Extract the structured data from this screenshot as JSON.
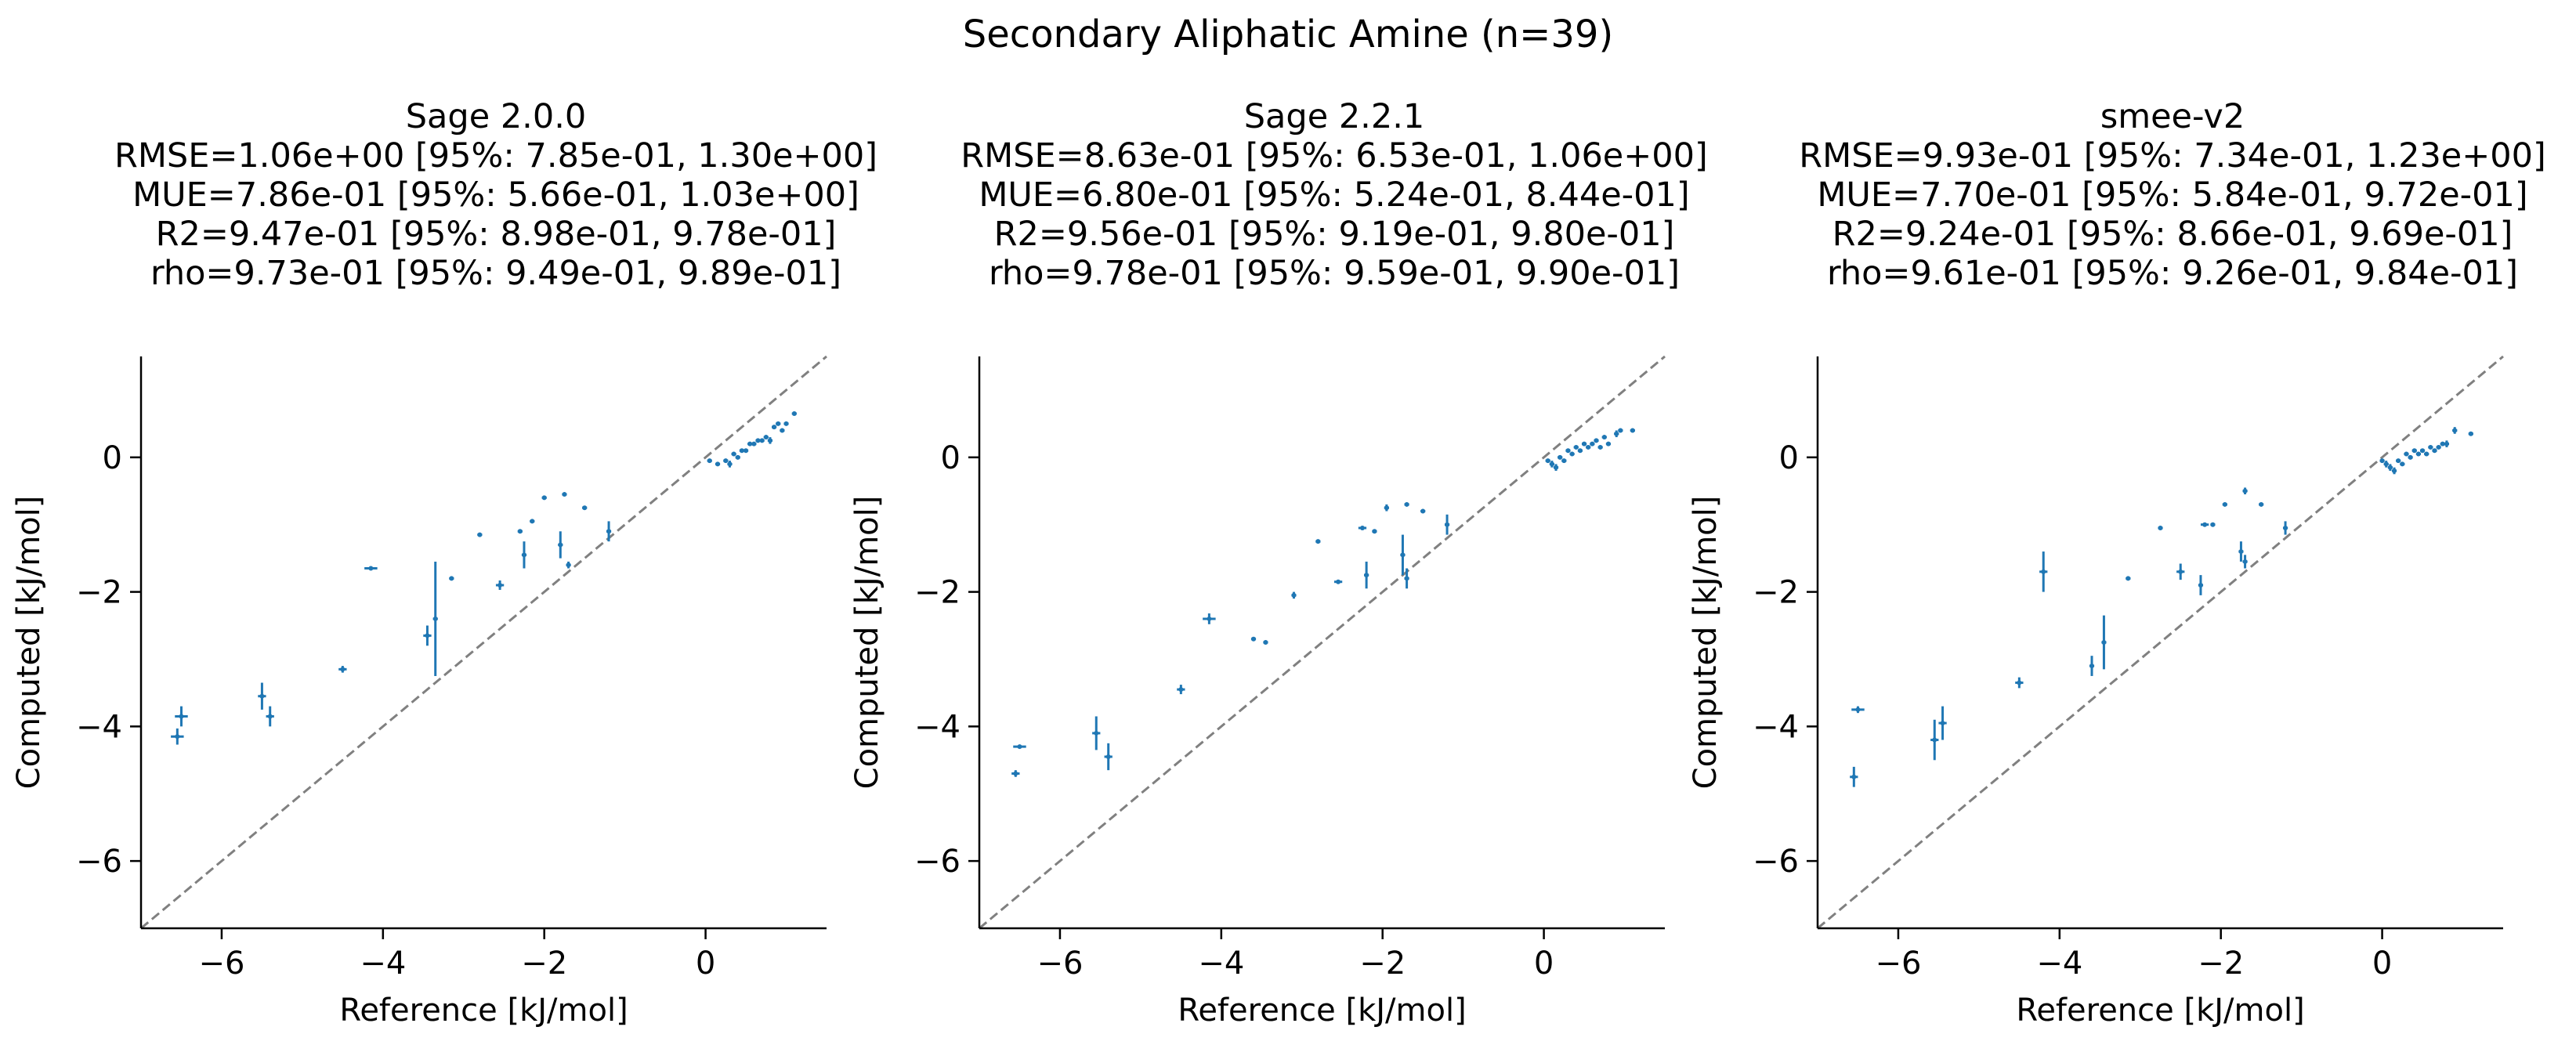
{
  "suptitle": "Secondary Aliphatic Amine (n=39)",
  "colors": {
    "points": "#1f77b4",
    "diagonal": "#808080",
    "axes": "#000000"
  },
  "chart_data": [
    {
      "type": "scatter",
      "title": "Sage 2.0.0",
      "stats": [
        "RMSE=1.06e+00 [95%: 7.85e-01, 1.30e+00]",
        "MUE=7.86e-01 [95%: 5.66e-01, 1.03e+00]",
        "R2=9.47e-01 [95%: 8.98e-01, 9.78e-01]",
        "rho=9.73e-01 [95%: 9.49e-01, 9.89e-01]"
      ],
      "xlabel": "Reference [kJ/mol]",
      "ylabel": "Computed [kJ/mol]",
      "xlim": [
        -7.0,
        1.5
      ],
      "ylim": [
        -7.0,
        1.5
      ],
      "xticks": [
        "−6",
        "−4",
        "−2",
        "0"
      ],
      "yticks": [
        "−6",
        "−4",
        "−2",
        "0"
      ],
      "xtick_values": [
        -6,
        -4,
        -2,
        0
      ],
      "ytick_values": [
        -6,
        -4,
        -2,
        0
      ],
      "diagonal": true,
      "points": [
        {
          "x": -6.55,
          "y": -4.15,
          "yerr": 0.12,
          "xerr": 0.08
        },
        {
          "x": -6.5,
          "y": -3.85,
          "yerr": 0.15,
          "xerr": 0.08
        },
        {
          "x": -5.5,
          "y": -3.55,
          "yerr": 0.2,
          "xerr": 0.05
        },
        {
          "x": -5.4,
          "y": -3.85,
          "yerr": 0.15,
          "xerr": 0.05
        },
        {
          "x": -4.5,
          "y": -3.15,
          "yerr": 0.05,
          "xerr": 0.05
        },
        {
          "x": -4.15,
          "y": -1.65,
          "yerr": 0.02,
          "xerr": 0.08
        },
        {
          "x": -3.45,
          "y": -2.65,
          "yerr": 0.15,
          "xerr": 0.05
        },
        {
          "x": -3.35,
          "y": -2.4,
          "yerr": 0.85,
          "xerr": 0.03
        },
        {
          "x": -3.15,
          "y": -1.8,
          "yerr": 0.03,
          "xerr": 0.03
        },
        {
          "x": -2.8,
          "y": -1.15,
          "yerr": 0.03,
          "xerr": 0.03
        },
        {
          "x": -2.55,
          "y": -1.9,
          "yerr": 0.07,
          "xerr": 0.05
        },
        {
          "x": -2.3,
          "y": -1.1,
          "yerr": 0.03,
          "xerr": 0.03
        },
        {
          "x": -2.25,
          "y": -1.45,
          "yerr": 0.2,
          "xerr": 0.03
        },
        {
          "x": -2.15,
          "y": -0.95,
          "yerr": 0.03,
          "xerr": 0.03
        },
        {
          "x": -2.0,
          "y": -0.6,
          "yerr": 0.03,
          "xerr": 0.03
        },
        {
          "x": -1.8,
          "y": -1.3,
          "yerr": 0.2,
          "xerr": 0.03
        },
        {
          "x": -1.75,
          "y": -0.55,
          "yerr": 0.03,
          "xerr": 0.03
        },
        {
          "x": -1.7,
          "y": -1.6,
          "yerr": 0.05,
          "xerr": 0.03
        },
        {
          "x": -1.5,
          "y": -0.75,
          "yerr": 0.03,
          "xerr": 0.03
        },
        {
          "x": -1.2,
          "y": -1.1,
          "yerr": 0.15,
          "xerr": 0.03
        },
        {
          "x": 0.05,
          "y": -0.05,
          "yerr": 0.03,
          "xerr": 0.03
        },
        {
          "x": 0.15,
          "y": -0.1,
          "yerr": 0.03,
          "xerr": 0.03
        },
        {
          "x": 0.25,
          "y": -0.05,
          "yerr": 0.03,
          "xerr": 0.03
        },
        {
          "x": 0.3,
          "y": -0.1,
          "yerr": 0.05,
          "xerr": 0.03
        },
        {
          "x": 0.35,
          "y": 0.05,
          "yerr": 0.03,
          "xerr": 0.03
        },
        {
          "x": 0.4,
          "y": 0.0,
          "yerr": 0.03,
          "xerr": 0.03
        },
        {
          "x": 0.45,
          "y": 0.1,
          "yerr": 0.03,
          "xerr": 0.03
        },
        {
          "x": 0.5,
          "y": 0.1,
          "yerr": 0.03,
          "xerr": 0.03
        },
        {
          "x": 0.55,
          "y": 0.2,
          "yerr": 0.03,
          "xerr": 0.03
        },
        {
          "x": 0.6,
          "y": 0.2,
          "yerr": 0.03,
          "xerr": 0.03
        },
        {
          "x": 0.65,
          "y": 0.25,
          "yerr": 0.03,
          "xerr": 0.03
        },
        {
          "x": 0.7,
          "y": 0.25,
          "yerr": 0.03,
          "xerr": 0.03
        },
        {
          "x": 0.75,
          "y": 0.3,
          "yerr": 0.03,
          "xerr": 0.03
        },
        {
          "x": 0.8,
          "y": 0.25,
          "yerr": 0.05,
          "xerr": 0.03
        },
        {
          "x": 0.85,
          "y": 0.45,
          "yerr": 0.03,
          "xerr": 0.03
        },
        {
          "x": 0.9,
          "y": 0.5,
          "yerr": 0.03,
          "xerr": 0.03
        },
        {
          "x": 0.95,
          "y": 0.4,
          "yerr": 0.03,
          "xerr": 0.03
        },
        {
          "x": 1.0,
          "y": 0.5,
          "yerr": 0.03,
          "xerr": 0.03
        },
        {
          "x": 1.1,
          "y": 0.65,
          "yerr": 0.03,
          "xerr": 0.03
        }
      ]
    },
    {
      "type": "scatter",
      "title": "Sage 2.2.1",
      "stats": [
        "RMSE=8.63e-01 [95%: 6.53e-01, 1.06e+00]",
        "MUE=6.80e-01 [95%: 5.24e-01, 8.44e-01]",
        "R2=9.56e-01 [95%: 9.19e-01, 9.80e-01]",
        "rho=9.78e-01 [95%: 9.59e-01, 9.90e-01]"
      ],
      "xlabel": "Reference [kJ/mol]",
      "ylabel": "Computed [kJ/mol]",
      "xlim": [
        -7.0,
        1.5
      ],
      "ylim": [
        -7.0,
        1.5
      ],
      "xticks": [
        "−6",
        "−4",
        "−2",
        "0"
      ],
      "yticks": [
        "−6",
        "−4",
        "−2",
        "0"
      ],
      "xtick_values": [
        -6,
        -4,
        -2,
        0
      ],
      "ytick_values": [
        -6,
        -4,
        -2,
        0
      ],
      "diagonal": true,
      "points": [
        {
          "x": -6.55,
          "y": -4.7,
          "yerr": 0.05,
          "xerr": 0.05
        },
        {
          "x": -6.5,
          "y": -4.3,
          "yerr": 0.02,
          "xerr": 0.08
        },
        {
          "x": -5.55,
          "y": -4.1,
          "yerr": 0.25,
          "xerr": 0.05
        },
        {
          "x": -5.4,
          "y": -4.45,
          "yerr": 0.2,
          "xerr": 0.05
        },
        {
          "x": -4.5,
          "y": -3.45,
          "yerr": 0.07,
          "xerr": 0.05
        },
        {
          "x": -4.15,
          "y": -2.4,
          "yerr": 0.08,
          "xerr": 0.08
        },
        {
          "x": -3.6,
          "y": -2.7,
          "yerr": 0.03,
          "xerr": 0.03
        },
        {
          "x": -3.45,
          "y": -2.75,
          "yerr": 0.03,
          "xerr": 0.03
        },
        {
          "x": -3.1,
          "y": -2.05,
          "yerr": 0.05,
          "xerr": 0.03
        },
        {
          "x": -2.8,
          "y": -1.25,
          "yerr": 0.03,
          "xerr": 0.03
        },
        {
          "x": -2.55,
          "y": -1.85,
          "yerr": 0.03,
          "xerr": 0.05
        },
        {
          "x": -2.25,
          "y": -1.05,
          "yerr": 0.03,
          "xerr": 0.05
        },
        {
          "x": -2.2,
          "y": -1.75,
          "yerr": 0.2,
          "xerr": 0.03
        },
        {
          "x": -2.1,
          "y": -1.1,
          "yerr": 0.03,
          "xerr": 0.03
        },
        {
          "x": -1.95,
          "y": -0.75,
          "yerr": 0.05,
          "xerr": 0.03
        },
        {
          "x": -1.75,
          "y": -1.45,
          "yerr": 0.3,
          "xerr": 0.03
        },
        {
          "x": -1.7,
          "y": -0.7,
          "yerr": 0.03,
          "xerr": 0.03
        },
        {
          "x": -1.7,
          "y": -1.8,
          "yerr": 0.15,
          "xerr": 0.03
        },
        {
          "x": -1.5,
          "y": -0.8,
          "yerr": 0.03,
          "xerr": 0.03
        },
        {
          "x": -1.2,
          "y": -1.0,
          "yerr": 0.15,
          "xerr": 0.03
        },
        {
          "x": 0.05,
          "y": -0.05,
          "yerr": 0.03,
          "xerr": 0.03
        },
        {
          "x": 0.1,
          "y": -0.1,
          "yerr": 0.05,
          "xerr": 0.03
        },
        {
          "x": 0.15,
          "y": -0.15,
          "yerr": 0.05,
          "xerr": 0.03
        },
        {
          "x": 0.2,
          "y": 0.0,
          "yerr": 0.03,
          "xerr": 0.03
        },
        {
          "x": 0.25,
          "y": -0.05,
          "yerr": 0.03,
          "xerr": 0.03
        },
        {
          "x": 0.3,
          "y": 0.1,
          "yerr": 0.03,
          "xerr": 0.03
        },
        {
          "x": 0.35,
          "y": 0.05,
          "yerr": 0.03,
          "xerr": 0.03
        },
        {
          "x": 0.4,
          "y": 0.15,
          "yerr": 0.03,
          "xerr": 0.03
        },
        {
          "x": 0.45,
          "y": 0.1,
          "yerr": 0.03,
          "xerr": 0.03
        },
        {
          "x": 0.5,
          "y": 0.2,
          "yerr": 0.03,
          "xerr": 0.03
        },
        {
          "x": 0.55,
          "y": 0.15,
          "yerr": 0.03,
          "xerr": 0.03
        },
        {
          "x": 0.6,
          "y": 0.2,
          "yerr": 0.03,
          "xerr": 0.03
        },
        {
          "x": 0.65,
          "y": 0.25,
          "yerr": 0.03,
          "xerr": 0.03
        },
        {
          "x": 0.7,
          "y": 0.15,
          "yerr": 0.03,
          "xerr": 0.03
        },
        {
          "x": 0.75,
          "y": 0.3,
          "yerr": 0.03,
          "xerr": 0.03
        },
        {
          "x": 0.8,
          "y": 0.2,
          "yerr": 0.03,
          "xerr": 0.03
        },
        {
          "x": 0.9,
          "y": 0.35,
          "yerr": 0.05,
          "xerr": 0.03
        },
        {
          "x": 0.95,
          "y": 0.4,
          "yerr": 0.03,
          "xerr": 0.03
        },
        {
          "x": 1.1,
          "y": 0.4,
          "yerr": 0.03,
          "xerr": 0.03
        }
      ]
    },
    {
      "type": "scatter",
      "title": "smee-v2",
      "stats": [
        "RMSE=9.93e-01 [95%: 7.34e-01, 1.23e+00]",
        "MUE=7.70e-01 [95%: 5.84e-01, 9.72e-01]",
        "R2=9.24e-01 [95%: 8.66e-01, 9.69e-01]",
        "rho=9.61e-01 [95%: 9.26e-01, 9.84e-01]"
      ],
      "xlabel": "Reference [kJ/mol]",
      "ylabel": "Computed [kJ/mol]",
      "xlim": [
        -7.0,
        1.5
      ],
      "ylim": [
        -7.0,
        1.5
      ],
      "xticks": [
        "−6",
        "−4",
        "−2",
        "0"
      ],
      "yticks": [
        "−6",
        "−4",
        "−2",
        "0"
      ],
      "xtick_values": [
        -6,
        -4,
        -2,
        0
      ],
      "ytick_values": [
        -6,
        -4,
        -2,
        0
      ],
      "diagonal": true,
      "points": [
        {
          "x": -6.55,
          "y": -4.75,
          "yerr": 0.15,
          "xerr": 0.05
        },
        {
          "x": -6.5,
          "y": -3.75,
          "yerr": 0.05,
          "xerr": 0.08
        },
        {
          "x": -5.55,
          "y": -4.2,
          "yerr": 0.3,
          "xerr": 0.05
        },
        {
          "x": -5.45,
          "y": -3.95,
          "yerr": 0.25,
          "xerr": 0.05
        },
        {
          "x": -4.5,
          "y": -3.35,
          "yerr": 0.08,
          "xerr": 0.05
        },
        {
          "x": -4.2,
          "y": -1.7,
          "yerr": 0.3,
          "xerr": 0.05
        },
        {
          "x": -3.6,
          "y": -3.1,
          "yerr": 0.15,
          "xerr": 0.03
        },
        {
          "x": -3.45,
          "y": -2.75,
          "yerr": 0.4,
          "xerr": 0.03
        },
        {
          "x": -3.15,
          "y": -1.8,
          "yerr": 0.03,
          "xerr": 0.03
        },
        {
          "x": -2.75,
          "y": -1.05,
          "yerr": 0.03,
          "xerr": 0.03
        },
        {
          "x": -2.5,
          "y": -1.7,
          "yerr": 0.12,
          "xerr": 0.05
        },
        {
          "x": -2.25,
          "y": -1.9,
          "yerr": 0.15,
          "xerr": 0.03
        },
        {
          "x": -2.2,
          "y": -1.0,
          "yerr": 0.03,
          "xerr": 0.05
        },
        {
          "x": -2.1,
          "y": -1.0,
          "yerr": 0.03,
          "xerr": 0.03
        },
        {
          "x": -1.95,
          "y": -0.7,
          "yerr": 0.03,
          "xerr": 0.03
        },
        {
          "x": -1.75,
          "y": -1.4,
          "yerr": 0.15,
          "xerr": 0.03
        },
        {
          "x": -1.7,
          "y": -0.5,
          "yerr": 0.05,
          "xerr": 0.03
        },
        {
          "x": -1.7,
          "y": -1.55,
          "yerr": 0.1,
          "xerr": 0.03
        },
        {
          "x": -1.5,
          "y": -0.7,
          "yerr": 0.03,
          "xerr": 0.03
        },
        {
          "x": -1.2,
          "y": -1.05,
          "yerr": 0.1,
          "xerr": 0.03
        },
        {
          "x": 0.0,
          "y": -0.05,
          "yerr": 0.03,
          "xerr": 0.03
        },
        {
          "x": 0.05,
          "y": -0.1,
          "yerr": 0.05,
          "xerr": 0.03
        },
        {
          "x": 0.1,
          "y": -0.15,
          "yerr": 0.05,
          "xerr": 0.03
        },
        {
          "x": 0.15,
          "y": -0.2,
          "yerr": 0.05,
          "xerr": 0.03
        },
        {
          "x": 0.2,
          "y": -0.05,
          "yerr": 0.03,
          "xerr": 0.03
        },
        {
          "x": 0.25,
          "y": -0.1,
          "yerr": 0.03,
          "xerr": 0.03
        },
        {
          "x": 0.3,
          "y": 0.05,
          "yerr": 0.03,
          "xerr": 0.03
        },
        {
          "x": 0.35,
          "y": 0.0,
          "yerr": 0.03,
          "xerr": 0.03
        },
        {
          "x": 0.4,
          "y": 0.1,
          "yerr": 0.03,
          "xerr": 0.03
        },
        {
          "x": 0.45,
          "y": 0.05,
          "yerr": 0.03,
          "xerr": 0.03
        },
        {
          "x": 0.5,
          "y": 0.1,
          "yerr": 0.03,
          "xerr": 0.03
        },
        {
          "x": 0.55,
          "y": 0.05,
          "yerr": 0.03,
          "xerr": 0.03
        },
        {
          "x": 0.6,
          "y": 0.15,
          "yerr": 0.03,
          "xerr": 0.03
        },
        {
          "x": 0.65,
          "y": 0.1,
          "yerr": 0.03,
          "xerr": 0.03
        },
        {
          "x": 0.7,
          "y": 0.15,
          "yerr": 0.03,
          "xerr": 0.03
        },
        {
          "x": 0.75,
          "y": 0.2,
          "yerr": 0.03,
          "xerr": 0.03
        },
        {
          "x": 0.8,
          "y": 0.2,
          "yerr": 0.05,
          "xerr": 0.03
        },
        {
          "x": 0.9,
          "y": 0.4,
          "yerr": 0.05,
          "xerr": 0.03
        },
        {
          "x": 1.1,
          "y": 0.35,
          "yerr": 0.03,
          "xerr": 0.03
        }
      ]
    }
  ]
}
